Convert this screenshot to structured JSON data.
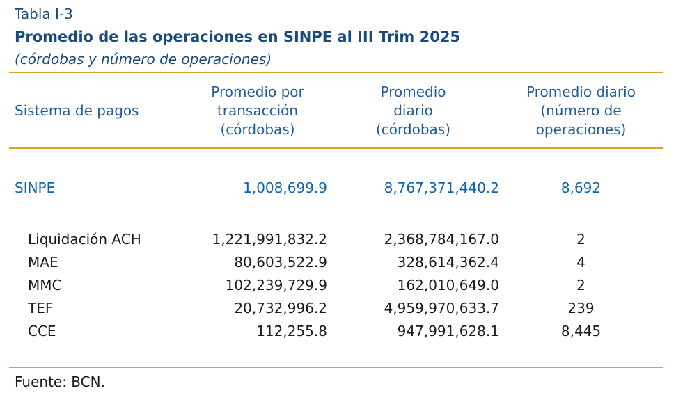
{
  "header": {
    "label": "Tabla I-3",
    "title": "Promedio de las operaciones en SINPE al III Trim 2025",
    "subtitle": "(córdobas y número de operaciones)"
  },
  "columns": {
    "system": "Sistema de pagos",
    "per_transaction": "Promedio por\ntransacción\n(córdobas)",
    "daily": "Promedio\ndiario\n(córdobas)",
    "daily_ops": "Promedio diario\n(número de\noperaciones)"
  },
  "summary_row": {
    "name": "SINPE",
    "per_transaction": "1,008,699.9",
    "daily": "8,767,371,440.2",
    "daily_ops": "8,692"
  },
  "detail_rows": [
    {
      "name": "Liquidación ACH",
      "per_transaction": "1,221,991,832.2",
      "daily": "2,368,784,167.0",
      "daily_ops": "2"
    },
    {
      "name": "MAE",
      "per_transaction": "80,603,522.9",
      "daily": "328,614,362.4",
      "daily_ops": "4"
    },
    {
      "name": "MMC",
      "per_transaction": "102,239,729.9",
      "daily": "162,010,649.0",
      "daily_ops": "2"
    },
    {
      "name": "TEF",
      "per_transaction": "20,732,996.2",
      "daily": "4,959,970,633.7",
      "daily_ops": "239"
    },
    {
      "name": "CCE",
      "per_transaction": "112,255.8",
      "daily": "947,991,628.1",
      "daily_ops": "8,445"
    }
  ],
  "source": "Fuente: BCN.",
  "colors": {
    "title_navy": "#1A4B7D",
    "header_blue": "#1F5C99",
    "summary_blue": "#0D64AE",
    "body_black": "#1A1A1A",
    "rule_gold": "#D9A427",
    "background": "#FFFFFF"
  }
}
